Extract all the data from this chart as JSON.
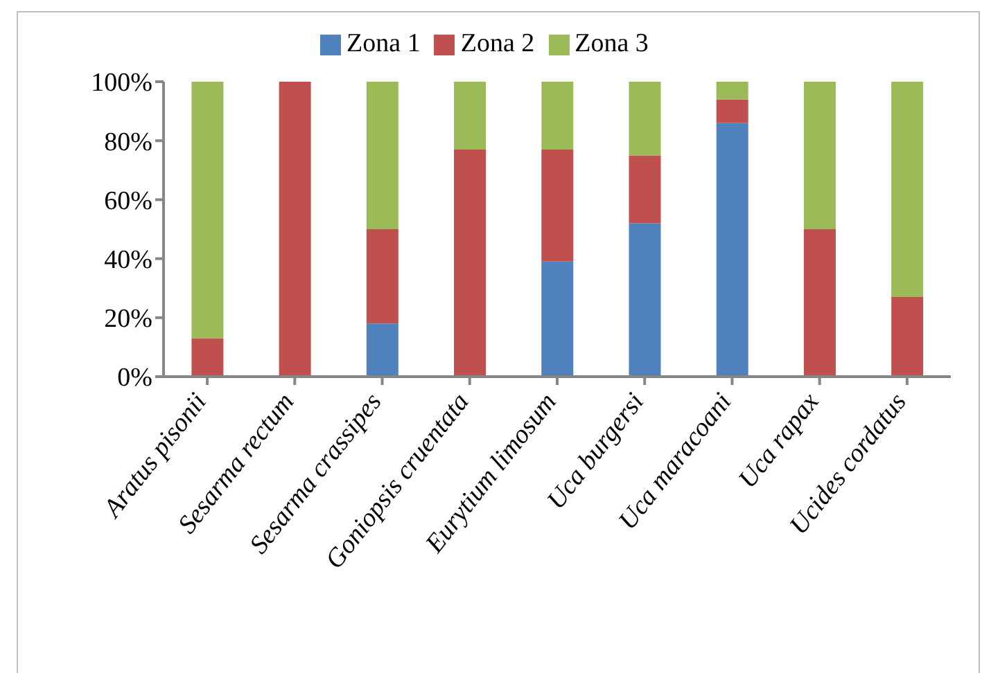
{
  "chart_data": {
    "type": "bar",
    "stacked": true,
    "categories": [
      "Aratus pisonii",
      "Sesarma rectum",
      "Sesarma crassipes",
      "Goniopsis cruentata",
      "Eurytium limosum",
      "Uca burgersi",
      "Uca maracoani",
      "Uca rapax",
      "Ucides cordatus"
    ],
    "series": [
      {
        "name": "Zona 1",
        "color": "#4f81bd",
        "values": [
          0,
          0,
          18,
          0,
          39,
          52,
          86,
          0,
          0
        ]
      },
      {
        "name": "Zona 2",
        "color": "#c0504d",
        "values": [
          13,
          100,
          32,
          77,
          38,
          23,
          8,
          50,
          27
        ]
      },
      {
        "name": "Zona 3",
        "color": "#9bbb59",
        "values": [
          87,
          0,
          50,
          23,
          23,
          25,
          6,
          50,
          73
        ]
      }
    ],
    "ylim": [
      0,
      100
    ],
    "yticks": [
      {
        "value": 0,
        "label": "0%"
      },
      {
        "value": 20,
        "label": "20%"
      },
      {
        "value": 40,
        "label": "40%"
      },
      {
        "value": 60,
        "label": "60%"
      },
      {
        "value": 80,
        "label": "80%"
      },
      {
        "value": 100,
        "label": "100%"
      }
    ],
    "legend": "top",
    "grid": false
  }
}
